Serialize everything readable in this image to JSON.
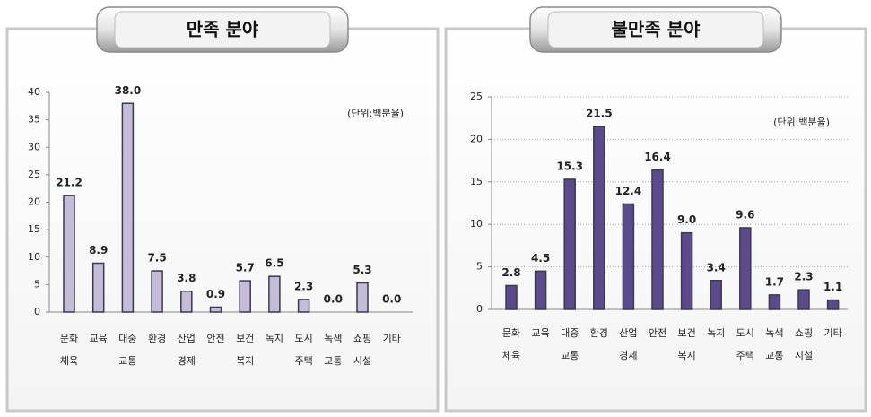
{
  "chart_data": [
    {
      "type": "bar",
      "title": "만족 분야",
      "unit_note": "(단위:백분율)",
      "categories": [
        [
          "문화",
          "체육"
        ],
        [
          "교육"
        ],
        [
          "대중",
          "교통"
        ],
        [
          "환경"
        ],
        [
          "산업",
          "경제"
        ],
        [
          "안전"
        ],
        [
          "보건",
          "복지"
        ],
        [
          "녹지"
        ],
        [
          "도시",
          "주택"
        ],
        [
          "녹색",
          "교통"
        ],
        [
          "쇼핑",
          "시설"
        ],
        [
          "기타"
        ]
      ],
      "values": [
        21.2,
        8.9,
        38.0,
        7.5,
        3.8,
        0.9,
        5.7,
        6.5,
        2.3,
        0.0,
        5.3,
        0.0
      ],
      "value_labels": [
        "21.2",
        "8.9",
        "38.0",
        "7.5",
        "3.8",
        "0.9",
        "5.7",
        "6.5",
        "2.3",
        "0.0",
        "5.3",
        "0.0"
      ],
      "color": "#c4bcd9",
      "ylim": [
        0,
        40
      ],
      "yticks": [
        0,
        5,
        10,
        15,
        20,
        25,
        30,
        35,
        40
      ],
      "grid": false
    },
    {
      "type": "bar",
      "title": "불만족 분야",
      "unit_note": "(단위:백분율)",
      "categories": [
        [
          "문화",
          "체육"
        ],
        [
          "교육"
        ],
        [
          "대중",
          "교통"
        ],
        [
          "환경"
        ],
        [
          "산업",
          "경제"
        ],
        [
          "안전"
        ],
        [
          "보건",
          "복지"
        ],
        [
          "녹지"
        ],
        [
          "도시",
          "주택"
        ],
        [
          "녹색",
          "교통"
        ],
        [
          "쇼핑",
          "시설"
        ],
        [
          "기타"
        ]
      ],
      "values": [
        2.8,
        4.5,
        15.3,
        21.5,
        12.4,
        16.4,
        9.0,
        3.4,
        9.6,
        1.7,
        2.3,
        1.1
      ],
      "value_labels": [
        "2.8",
        "4.5",
        "15.3",
        "21.5",
        "12.4",
        "16.4",
        "9.0",
        "3.4",
        "9.6",
        "1.7",
        "2.3",
        "1.1"
      ],
      "color": "#5b4a8c",
      "ylim": [
        0,
        25
      ],
      "yticks": [
        0,
        5,
        10,
        15,
        20,
        25
      ],
      "grid": true
    }
  ]
}
